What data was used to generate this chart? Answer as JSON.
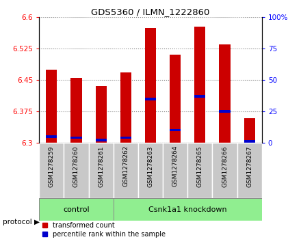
{
  "title": "GDS5360 / ILMN_1222860",
  "samples": [
    "GSM1278259",
    "GSM1278260",
    "GSM1278261",
    "GSM1278262",
    "GSM1278263",
    "GSM1278264",
    "GSM1278265",
    "GSM1278266",
    "GSM1278267"
  ],
  "transformed_counts": [
    6.475,
    6.455,
    6.435,
    6.468,
    6.575,
    6.51,
    6.578,
    6.535,
    6.358
  ],
  "percentile_ranks": [
    5,
    4,
    2,
    4,
    35,
    10,
    37,
    25,
    1
  ],
  "ymin": 6.3,
  "ymax": 6.6,
  "yticks": [
    6.3,
    6.375,
    6.45,
    6.525,
    6.6
  ],
  "right_yticks": [
    0,
    25,
    50,
    75,
    100
  ],
  "bar_color": "#cc0000",
  "blue_color": "#0000cc",
  "n_control": 3,
  "control_label": "control",
  "knockdown_label": "Csnk1a1 knockdown",
  "protocol_label": "protocol",
  "legend_red": "transformed count",
  "legend_blue": "percentile rank within the sample",
  "group_bg_color": "#90ee90",
  "sample_bg_color": "#c8c8c8",
  "plot_bg_color": "#ffffff"
}
